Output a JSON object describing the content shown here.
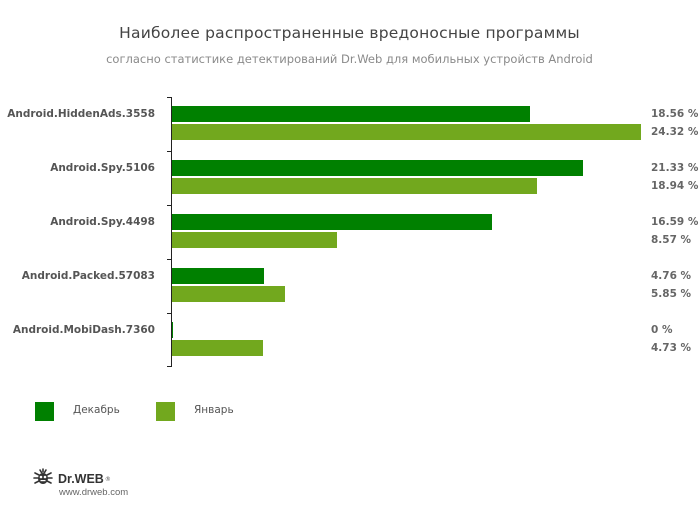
{
  "chart_data": {
    "type": "bar",
    "orientation": "horizontal",
    "title": "Наиболее распространенные вредоносные программы",
    "subtitle": "согласно статистике детектирований Dr.Web для мобильных устройств Android",
    "categories": [
      "Android.HiddenAds.3558",
      "Android.Spy.5106",
      "Android.Spy.4498",
      "Android.Packed.57083",
      "Android.MobiDash.7360"
    ],
    "series": [
      {
        "name": "Декабрь",
        "color": "#008000",
        "values": [
          18.56,
          21.33,
          16.59,
          4.76,
          0
        ]
      },
      {
        "name": "Январь",
        "color": "#72a81e",
        "values": [
          24.32,
          18.94,
          8.57,
          5.85,
          4.73
        ]
      }
    ],
    "value_labels": [
      [
        "18.56 %",
        "24.32 %"
      ],
      [
        "21.33 %",
        "18.94 %"
      ],
      [
        "16.59 %",
        "8.57 %"
      ],
      [
        "4.76 %",
        "5.85 %"
      ],
      [
        "0 %",
        "4.73 %"
      ]
    ],
    "xlabel": "",
    "ylabel": "",
    "unit": "%",
    "grid": false,
    "legend_position": "bottom-left"
  },
  "legend": {
    "items": [
      {
        "label": "Декабрь",
        "color": "#008000"
      },
      {
        "label": "Январь",
        "color": "#72a81e"
      }
    ]
  },
  "branding": {
    "logo_text": "Dr.WEB",
    "logo_reg": "®",
    "url": "www.drweb.com",
    "icon": "spider-bug-icon"
  }
}
